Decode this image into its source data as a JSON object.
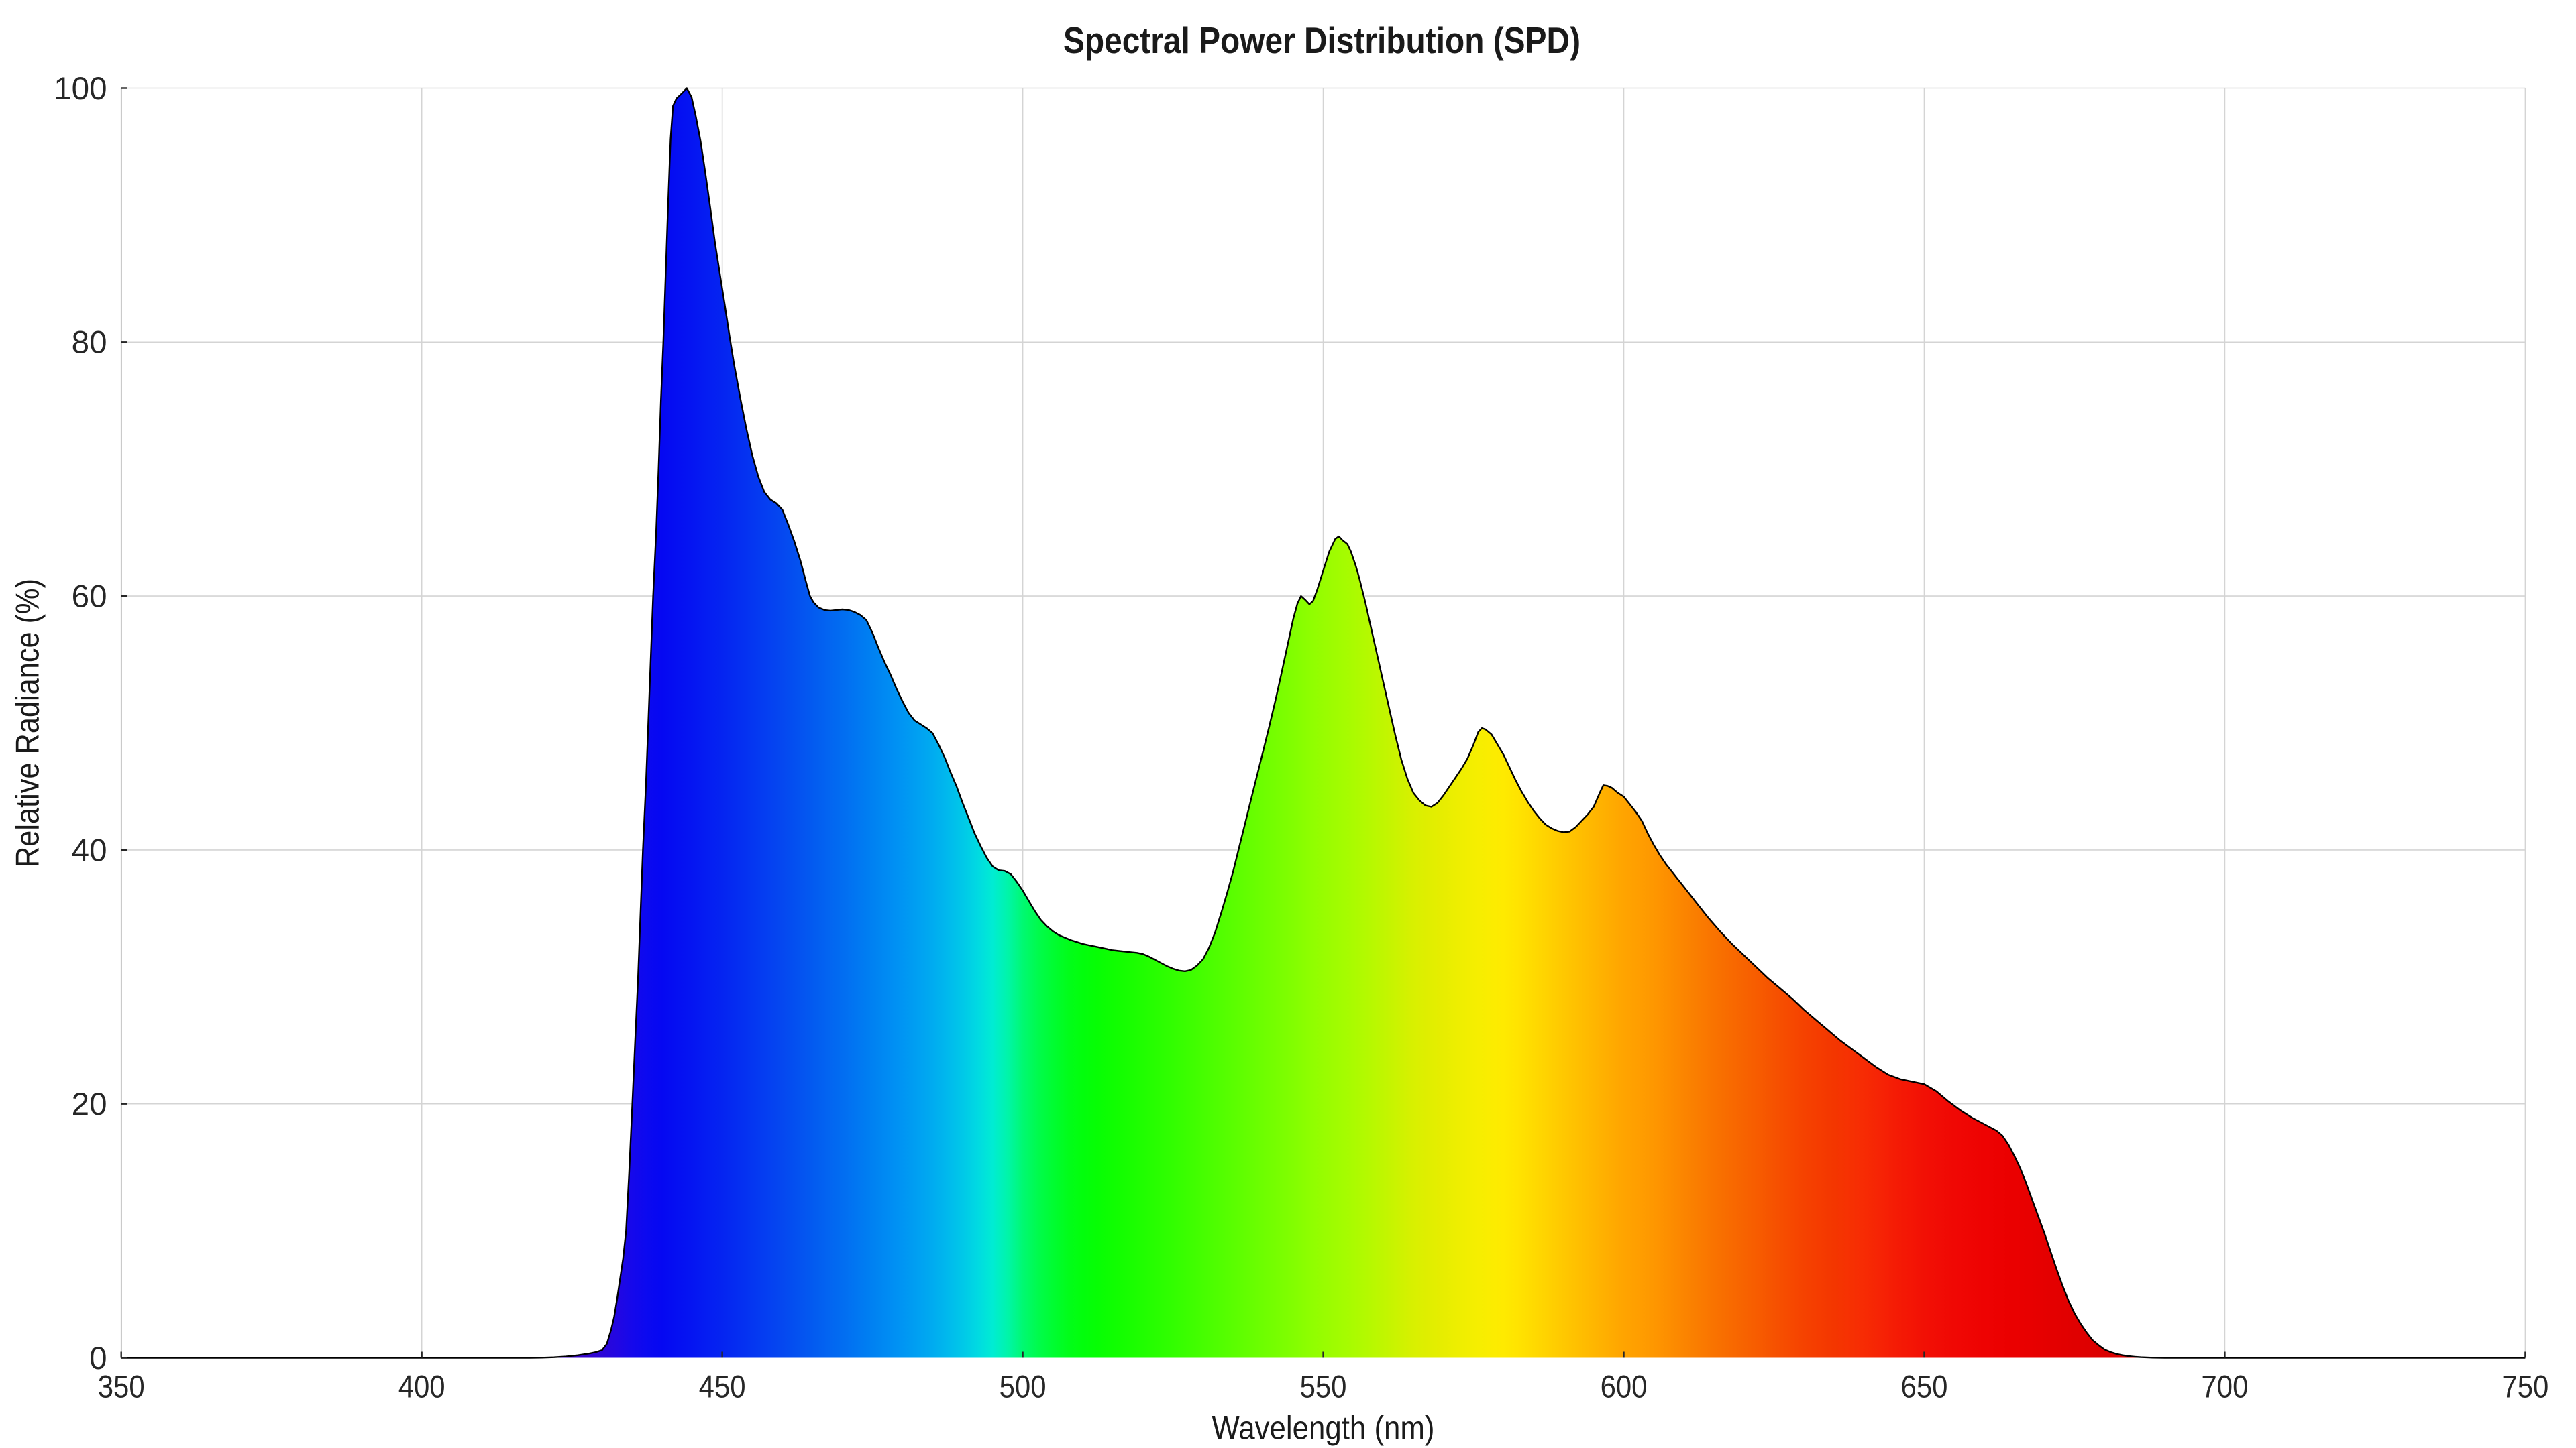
{
  "chart_data": {
    "type": "area",
    "title": "Spectral Power Distribution (SPD)",
    "xlabel": "Wavelength (nm)",
    "ylabel": "Relative Radiance (%)",
    "xlim": [
      350,
      750
    ],
    "ylim": [
      0,
      100
    ],
    "x_ticks": [
      350,
      400,
      450,
      500,
      550,
      600,
      650,
      700,
      750
    ],
    "y_ticks": [
      0,
      20,
      40,
      60,
      80,
      100
    ],
    "grid": true,
    "legend": null,
    "series": [
      {
        "name": "SPD",
        "x": [
          350,
          380,
          400,
          410,
          415,
          418,
          420,
          422,
          424,
          426,
          428,
          429,
          430,
          430.8,
          431.5,
          432,
          432.5,
          433,
          433.5,
          434,
          434.5,
          435,
          435.5,
          436,
          436.4,
          436.8,
          437.3,
          437.7,
          438.1,
          438.5,
          439,
          439.4,
          439.8,
          440.2,
          440.6,
          441,
          441.4,
          441.8,
          442.4,
          443.3,
          444.1,
          444.9,
          445.6,
          446.4,
          447.2,
          448,
          448.8,
          449.6,
          450.4,
          451.2,
          452,
          453,
          454,
          455,
          456,
          457,
          458,
          459,
          460,
          461,
          462,
          463,
          464,
          464.6,
          465.2,
          466,
          467,
          468,
          469,
          470,
          471,
          472,
          473,
          474,
          475,
          476,
          477,
          478,
          479,
          480,
          481,
          482,
          483,
          484,
          485,
          486,
          487,
          488,
          489,
          490,
          491,
          492,
          493,
          494,
          495,
          496,
          497,
          498,
          499,
          500,
          501,
          502,
          503,
          504,
          505,
          506,
          507,
          508,
          509,
          510,
          511,
          512,
          513,
          514,
          515,
          516,
          517,
          518,
          519,
          520,
          521,
          522,
          523,
          524,
          525,
          526,
          527,
          528,
          529,
          530,
          531,
          532,
          533,
          534,
          535,
          536,
          537,
          538,
          539,
          540,
          541,
          542,
          543,
          544,
          545,
          545.7,
          546.3,
          547,
          547.7,
          548.3,
          549,
          550,
          551,
          552,
          552.6,
          553.2,
          554,
          554.6,
          555.4,
          556,
          557,
          558,
          559,
          560,
          561,
          562,
          563,
          564,
          565,
          566,
          567,
          568,
          569,
          570,
          571,
          572,
          573,
          574,
          575,
          575.8,
          576.4,
          577,
          578,
          579,
          580,
          581,
          582,
          583,
          584,
          585,
          586,
          587,
          588,
          589,
          590,
          591,
          592,
          593,
          594,
          595,
          596,
          596.6,
          597.3,
          598,
          599,
          600,
          601,
          602,
          603,
          604,
          605,
          606,
          607,
          608,
          609,
          610,
          612,
          614,
          616,
          618,
          620,
          622,
          624,
          626,
          628,
          630,
          632,
          634,
          636,
          638,
          640,
          642,
          644,
          646,
          648,
          650,
          652,
          654,
          656,
          658,
          660,
          662,
          663,
          664,
          665,
          666,
          667,
          668,
          669,
          670,
          671,
          672,
          673,
          674,
          675,
          676,
          677,
          678,
          679,
          680,
          681,
          682,
          683,
          684,
          685,
          686,
          687,
          688,
          690,
          695,
          700,
          720,
          750
        ],
        "y": [
          0,
          0,
          0,
          0,
          0,
          0,
          0.01,
          0.04,
          0.1,
          0.2,
          0.35,
          0.45,
          0.6,
          1.1,
          2.2,
          3.2,
          4.6,
          6.2,
          7.8,
          10,
          14.5,
          19.5,
          24.8,
          30,
          35,
          40,
          45,
          50,
          55,
          60,
          65,
          70,
          75.4,
          80,
          85.5,
          91,
          96,
          98.6,
          99.2,
          99.6,
          100,
          99.3,
          97.8,
          95.8,
          93.3,
          90.6,
          87.8,
          85.4,
          83,
          80.5,
          78.2,
          75.6,
          73.2,
          71.1,
          69.4,
          68.2,
          67.6,
          67.3,
          66.8,
          65.6,
          64.3,
          62.8,
          61,
          60,
          59.5,
          59.1,
          58.9,
          58.85,
          58.9,
          58.95,
          58.9,
          58.75,
          58.5,
          58.1,
          57.1,
          55.9,
          54.8,
          53.8,
          52.7,
          51.7,
          50.8,
          50.2,
          49.9,
          49.6,
          49.2,
          48.3,
          47.3,
          46.1,
          45,
          43.7,
          42.5,
          41.3,
          40.3,
          39.4,
          38.7,
          38.4,
          38.35,
          38.1,
          37.5,
          36.8,
          36,
          35.2,
          34.5,
          34,
          33.6,
          33.3,
          33.1,
          32.9,
          32.75,
          32.6,
          32.5,
          32.4,
          32.3,
          32.2,
          32.1,
          32.05,
          32,
          31.95,
          31.9,
          31.8,
          31.6,
          31.35,
          31.1,
          30.85,
          30.65,
          30.5,
          30.45,
          30.55,
          30.9,
          31.4,
          32.3,
          33.5,
          35,
          36.6,
          38.3,
          40.2,
          42.1,
          44,
          45.9,
          47.8,
          49.7,
          51.7,
          53.8,
          56,
          58.2,
          59.4,
          60,
          59.7,
          59.35,
          59.6,
          60.5,
          62,
          63.5,
          64.5,
          64.7,
          64.4,
          64.1,
          63.5,
          62.4,
          61.4,
          59.5,
          57.4,
          55.3,
          53.2,
          51.1,
          49,
          47.1,
          45.6,
          44.5,
          43.9,
          43.5,
          43.4,
          43.7,
          44.3,
          45,
          45.7,
          46.4,
          47.2,
          48.3,
          49.3,
          49.6,
          49.5,
          49.1,
          48.3,
          47.5,
          46.5,
          45.5,
          44.6,
          43.8,
          43.1,
          42.5,
          42,
          41.7,
          41.5,
          41.4,
          41.45,
          41.8,
          42.3,
          42.8,
          43.4,
          44.5,
          45.1,
          45.05,
          44.9,
          44.5,
          44.2,
          43.6,
          43,
          42.3,
          41.3,
          40.4,
          39.6,
          38.9,
          38.3,
          37.7,
          37.1,
          35.9,
          34.7,
          33.6,
          32.6,
          31.7,
          30.8,
          29.9,
          29.1,
          28.3,
          27.4,
          26.6,
          25.8,
          25,
          24.3,
          23.6,
          22.9,
          22.3,
          21.95,
          21.75,
          21.55,
          21.0,
          20.2,
          19.5,
          18.9,
          18.4,
          17.9,
          17.5,
          16.8,
          15.9,
          14.9,
          13.7,
          12.4,
          11.1,
          9.8,
          8.4,
          7,
          5.7,
          4.5,
          3.5,
          2.7,
          2,
          1.4,
          1,
          0.65,
          0.45,
          0.3,
          0.2,
          0.13,
          0.08,
          0.05,
          0.03,
          0.01,
          0,
          0,
          0,
          0,
          0
        ]
      }
    ],
    "fill": "spectral-gradient-by-wavelength",
    "spectrum_colors": [
      {
        "nm": 380,
        "color": "#4004A8"
      },
      {
        "nm": 418,
        "color": "#4103B0"
      },
      {
        "nm": 424,
        "color": "#3A04C0"
      },
      {
        "nm": 428,
        "color": "#3305CE"
      },
      {
        "nm": 431,
        "color": "#2906DC"
      },
      {
        "nm": 434,
        "color": "#1A07E8"
      },
      {
        "nm": 437,
        "color": "#0C09F0"
      },
      {
        "nm": 440,
        "color": "#0508F2"
      },
      {
        "nm": 445,
        "color": "#0515F2"
      },
      {
        "nm": 450,
        "color": "#0524F1"
      },
      {
        "nm": 455,
        "color": "#0536F1"
      },
      {
        "nm": 460,
        "color": "#0548F0"
      },
      {
        "nm": 465,
        "color": "#035AF0"
      },
      {
        "nm": 470,
        "color": "#026DF1"
      },
      {
        "nm": 475,
        "color": "#0081F2"
      },
      {
        "nm": 480,
        "color": "#0095F3"
      },
      {
        "nm": 485,
        "color": "#00ABF0"
      },
      {
        "nm": 488,
        "color": "#00BCEC"
      },
      {
        "nm": 491,
        "color": "#00CEE6"
      },
      {
        "nm": 494,
        "color": "#00E6DE"
      },
      {
        "nm": 496,
        "color": "#00F2C8"
      },
      {
        "nm": 498,
        "color": "#00F69E"
      },
      {
        "nm": 500,
        "color": "#00F972"
      },
      {
        "nm": 502,
        "color": "#00FB52"
      },
      {
        "nm": 504,
        "color": "#00FC3C"
      },
      {
        "nm": 506,
        "color": "#00FD28"
      },
      {
        "nm": 508,
        "color": "#01FD16"
      },
      {
        "nm": 510,
        "color": "#02FE0C"
      },
      {
        "nm": 513,
        "color": "#08FE02"
      },
      {
        "nm": 516,
        "color": "#12FE00"
      },
      {
        "nm": 520,
        "color": "#20FE00"
      },
      {
        "nm": 525,
        "color": "#32FE00"
      },
      {
        "nm": 530,
        "color": "#46FE00"
      },
      {
        "nm": 535,
        "color": "#5AFE00"
      },
      {
        "nm": 540,
        "color": "#6EFE00"
      },
      {
        "nm": 545,
        "color": "#82FE00"
      },
      {
        "nm": 550,
        "color": "#98FD00"
      },
      {
        "nm": 555,
        "color": "#AAFB00"
      },
      {
        "nm": 560,
        "color": "#C0F600"
      },
      {
        "nm": 565,
        "color": "#D8F000"
      },
      {
        "nm": 568,
        "color": "#E2EE00"
      },
      {
        "nm": 571,
        "color": "#EAED00"
      },
      {
        "nm": 574,
        "color": "#F1EE00"
      },
      {
        "nm": 577,
        "color": "#F9EE00"
      },
      {
        "nm": 580,
        "color": "#FEEA00"
      },
      {
        "nm": 583,
        "color": "#FFE100"
      },
      {
        "nm": 586,
        "color": "#FFD600"
      },
      {
        "nm": 590,
        "color": "#FFC800"
      },
      {
        "nm": 595,
        "color": "#FFB600"
      },
      {
        "nm": 600,
        "color": "#FFA400"
      },
      {
        "nm": 605,
        "color": "#FE9700"
      },
      {
        "nm": 610,
        "color": "#FB8500"
      },
      {
        "nm": 615,
        "color": "#F97300"
      },
      {
        "nm": 620,
        "color": "#F76300"
      },
      {
        "nm": 625,
        "color": "#F65200"
      },
      {
        "nm": 630,
        "color": "#F54200"
      },
      {
        "nm": 635,
        "color": "#F43600"
      },
      {
        "nm": 640,
        "color": "#F72B04"
      },
      {
        "nm": 645,
        "color": "#F51C05"
      },
      {
        "nm": 650,
        "color": "#F21005"
      },
      {
        "nm": 655,
        "color": "#F00804"
      },
      {
        "nm": 660,
        "color": "#EE0202"
      },
      {
        "nm": 665,
        "color": "#EA0000"
      },
      {
        "nm": 670,
        "color": "#E50000"
      },
      {
        "nm": 675,
        "color": "#E00000"
      },
      {
        "nm": 680,
        "color": "#DB0000"
      },
      {
        "nm": 685,
        "color": "#D60000"
      },
      {
        "nm": 690,
        "color": "#D30000"
      },
      {
        "nm": 750,
        "color": "#D30000"
      }
    ],
    "outline_color": "#000000",
    "background": "#ffffff"
  },
  "style": {
    "grid_color": "#d4d4d4",
    "spine_color": "#8a8a8a",
    "tick_color": "#262626",
    "text_color": "#1a1a1a"
  }
}
